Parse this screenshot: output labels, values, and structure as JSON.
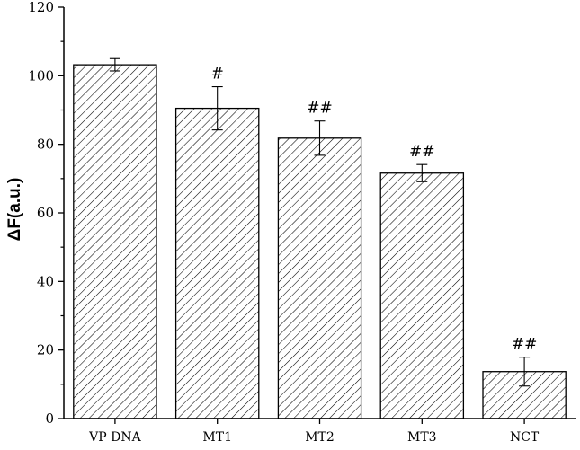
{
  "chart_data": {
    "type": "bar",
    "title": "",
    "xlabel": "",
    "ylabel": "ΔF(a.u.)",
    "ylim": [
      0,
      120
    ],
    "yticks": [
      0,
      20,
      40,
      60,
      80,
      100,
      120
    ],
    "categories": [
      "VP DNA",
      "MT1",
      "MT2",
      "MT3",
      "NCT"
    ],
    "values": [
      103.2,
      90.5,
      81.8,
      71.6,
      13.7
    ],
    "errors": [
      1.8,
      6.3,
      5.0,
      2.5,
      4.2
    ],
    "annotations": [
      "",
      "#",
      "##",
      "##",
      "##"
    ],
    "bar_fill": "hatched",
    "colors": {
      "bar_stroke": "#000000",
      "hatch": "#000000",
      "background": "#ffffff"
    },
    "grid": false,
    "legend": "none"
  }
}
